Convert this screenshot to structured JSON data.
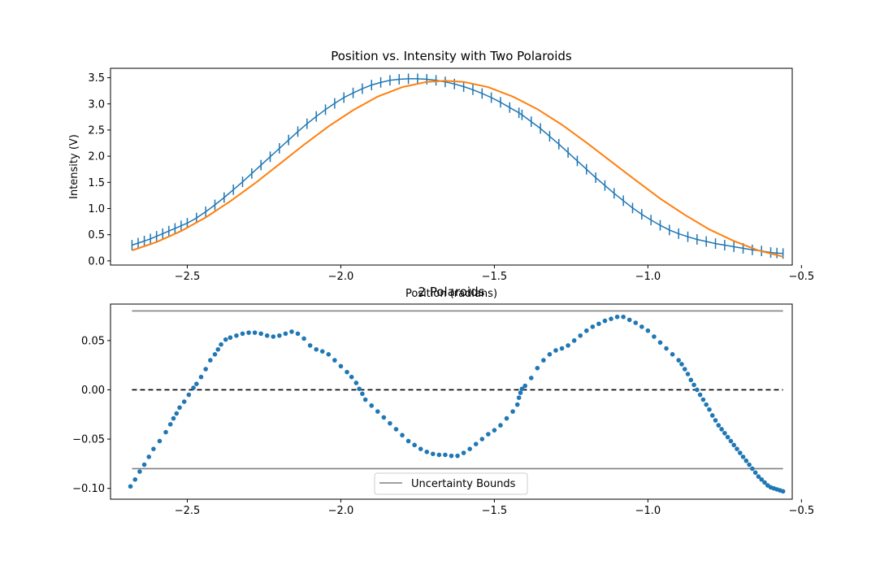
{
  "chart_data": [
    {
      "type": "line",
      "title": "Position vs. Intensity with Two Polaroids",
      "xlabel": "Position (radians)",
      "ylabel": "Intensity (V)",
      "xlim": [
        -2.75,
        -0.53
      ],
      "ylim": [
        -0.08,
        3.68
      ],
      "xticks": [
        -2.5,
        -2.0,
        -1.5,
        -1.0,
        -0.5
      ],
      "xtick_labels": [
        "−2.5",
        "−2.0",
        "−1.5",
        "−1.0",
        "−0.5"
      ],
      "yticks": [
        0.0,
        0.5,
        1.0,
        1.5,
        2.0,
        2.5,
        3.0,
        3.5
      ],
      "ytick_labels": [
        "0.0",
        "0.5",
        "1.0",
        "1.5",
        "2.0",
        "2.5",
        "3.0",
        "3.5"
      ],
      "grid": false,
      "series": [
        {
          "kind": "errorbar",
          "color": "#1f77b4",
          "x": [
            -2.68,
            -2.66,
            -2.64,
            -2.62,
            -2.6,
            -2.58,
            -2.56,
            -2.54,
            -2.52,
            -2.5,
            -2.47,
            -2.44,
            -2.41,
            -2.38,
            -2.35,
            -2.32,
            -2.29,
            -2.26,
            -2.23,
            -2.2,
            -2.17,
            -2.14,
            -2.11,
            -2.08,
            -2.05,
            -2.02,
            -1.99,
            -1.96,
            -1.93,
            -1.9,
            -1.87,
            -1.84,
            -1.81,
            -1.78,
            -1.75,
            -1.72,
            -1.69,
            -1.66,
            -1.63,
            -1.6,
            -1.57,
            -1.54,
            -1.51,
            -1.48,
            -1.45,
            -1.42,
            -1.41,
            -1.38,
            -1.35,
            -1.32,
            -1.29,
            -1.26,
            -1.23,
            -1.2,
            -1.17,
            -1.14,
            -1.11,
            -1.08,
            -1.05,
            -1.02,
            -0.99,
            -0.96,
            -0.93,
            -0.9,
            -0.87,
            -0.84,
            -0.81,
            -0.78,
            -0.75,
            -0.72,
            -0.69,
            -0.66,
            -0.63,
            -0.6,
            -0.58,
            -0.56
          ],
          "y": [
            0.3,
            0.34,
            0.38,
            0.42,
            0.47,
            0.52,
            0.57,
            0.62,
            0.67,
            0.72,
            0.82,
            0.94,
            1.07,
            1.21,
            1.36,
            1.51,
            1.67,
            1.83,
            1.99,
            2.15,
            2.31,
            2.47,
            2.62,
            2.76,
            2.89,
            3.01,
            3.12,
            3.21,
            3.29,
            3.36,
            3.41,
            3.45,
            3.47,
            3.48,
            3.48,
            3.47,
            3.45,
            3.42,
            3.38,
            3.33,
            3.27,
            3.2,
            3.12,
            3.03,
            2.93,
            2.83,
            2.79,
            2.66,
            2.53,
            2.38,
            2.23,
            2.07,
            1.91,
            1.75,
            1.59,
            1.44,
            1.29,
            1.15,
            1.01,
            0.89,
            0.78,
            0.68,
            0.59,
            0.52,
            0.46,
            0.41,
            0.37,
            0.33,
            0.3,
            0.27,
            0.24,
            0.21,
            0.19,
            0.16,
            0.15,
            0.14
          ],
          "yerr": 0.1
        },
        {
          "kind": "line",
          "color": "#ff7f0e",
          "x": [
            -2.68,
            -2.6,
            -2.52,
            -2.44,
            -2.36,
            -2.28,
            -2.2,
            -2.12,
            -2.04,
            -1.96,
            -1.88,
            -1.8,
            -1.72,
            -1.66,
            -1.6,
            -1.52,
            -1.44,
            -1.36,
            -1.28,
            -1.2,
            -1.12,
            -1.04,
            -0.96,
            -0.88,
            -0.8,
            -0.72,
            -0.64,
            -0.56
          ],
          "y": [
            0.2,
            0.36,
            0.57,
            0.83,
            1.14,
            1.48,
            1.85,
            2.22,
            2.57,
            2.88,
            3.14,
            3.32,
            3.42,
            3.44,
            3.42,
            3.32,
            3.14,
            2.9,
            2.6,
            2.26,
            1.9,
            1.54,
            1.19,
            0.88,
            0.6,
            0.38,
            0.2,
            0.08
          ]
        }
      ]
    },
    {
      "type": "scatter",
      "title": "2 Polaroids",
      "xlabel": "",
      "ylabel": "",
      "xlim": [
        -2.75,
        -0.53
      ],
      "ylim": [
        -0.111,
        0.087
      ],
      "xticks": [
        -2.5,
        -2.0,
        -1.5,
        -1.0,
        -0.5
      ],
      "xtick_labels": [
        "−2.5",
        "−2.0",
        "−1.5",
        "−1.0",
        "−0.5"
      ],
      "yticks": [
        0.05,
        0.0,
        -0.05,
        -0.1
      ],
      "ytick_labels": [
        "0.05",
        "0.00",
        "−0.05",
        "−0.10"
      ],
      "grid": false,
      "legend": {
        "placement": "lower center",
        "entries": [
          "Uncertainty Bounds"
        ]
      },
      "hlines": [
        {
          "y": 0.08,
          "color": "#808080",
          "style": "solid",
          "xmin": -2.68,
          "xmax": -0.56,
          "label": "Uncertainty Bounds"
        },
        {
          "y": -0.08,
          "color": "#808080",
          "style": "solid",
          "xmin": -2.68,
          "xmax": -0.56
        },
        {
          "y": 0.0,
          "color": "#000000",
          "style": "dashed",
          "xmin": -2.68,
          "xmax": -0.56
        }
      ],
      "series": [
        {
          "kind": "scatter",
          "color": "#1f77b4",
          "x": [
            -2.685,
            -2.67,
            -2.655,
            -2.64,
            -2.625,
            -2.61,
            -2.59,
            -2.57,
            -2.555,
            -2.545,
            -2.535,
            -2.525,
            -2.51,
            -2.495,
            -2.48,
            -2.47,
            -2.455,
            -2.44,
            -2.425,
            -2.41,
            -2.4,
            -2.39,
            -2.375,
            -2.36,
            -2.34,
            -2.32,
            -2.3,
            -2.28,
            -2.26,
            -2.24,
            -2.22,
            -2.2,
            -2.18,
            -2.16,
            -2.14,
            -2.12,
            -2.1,
            -2.08,
            -2.06,
            -2.04,
            -2.02,
            -2.0,
            -1.98,
            -1.965,
            -1.95,
            -1.94,
            -1.93,
            -1.92,
            -1.9,
            -1.88,
            -1.86,
            -1.84,
            -1.82,
            -1.8,
            -1.78,
            -1.76,
            -1.74,
            -1.72,
            -1.7,
            -1.68,
            -1.66,
            -1.64,
            -1.62,
            -1.6,
            -1.58,
            -1.56,
            -1.54,
            -1.52,
            -1.5,
            -1.48,
            -1.46,
            -1.44,
            -1.425,
            -1.42,
            -1.415,
            -1.41,
            -1.4,
            -1.38,
            -1.36,
            -1.34,
            -1.32,
            -1.3,
            -1.28,
            -1.26,
            -1.24,
            -1.22,
            -1.2,
            -1.18,
            -1.16,
            -1.14,
            -1.12,
            -1.1,
            -1.08,
            -1.06,
            -1.04,
            -1.02,
            -1.0,
            -0.98,
            -0.96,
            -0.94,
            -0.92,
            -0.9,
            -0.89,
            -0.88,
            -0.87,
            -0.86,
            -0.85,
            -0.84,
            -0.83,
            -0.82,
            -0.81,
            -0.8,
            -0.79,
            -0.78,
            -0.77,
            -0.76,
            -0.75,
            -0.74,
            -0.73,
            -0.72,
            -0.71,
            -0.7,
            -0.69,
            -0.68,
            -0.67,
            -0.66,
            -0.65,
            -0.64,
            -0.63,
            -0.62,
            -0.61,
            -0.6,
            -0.59,
            -0.58,
            -0.57,
            -0.56
          ],
          "y": [
            -0.098,
            -0.091,
            -0.083,
            -0.076,
            -0.068,
            -0.06,
            -0.052,
            -0.043,
            -0.035,
            -0.029,
            -0.024,
            -0.018,
            -0.012,
            -0.005,
            0.002,
            0.006,
            0.013,
            0.021,
            0.03,
            0.036,
            0.041,
            0.046,
            0.051,
            0.053,
            0.055,
            0.057,
            0.058,
            0.058,
            0.057,
            0.055,
            0.054,
            0.055,
            0.057,
            0.059,
            0.057,
            0.052,
            0.045,
            0.041,
            0.039,
            0.036,
            0.03,
            0.024,
            0.018,
            0.013,
            0.007,
            0.001,
            -0.004,
            -0.01,
            -0.016,
            -0.022,
            -0.028,
            -0.034,
            -0.04,
            -0.046,
            -0.052,
            -0.056,
            -0.06,
            -0.063,
            -0.065,
            -0.066,
            -0.066,
            -0.067,
            -0.067,
            -0.064,
            -0.06,
            -0.055,
            -0.05,
            -0.045,
            -0.041,
            -0.036,
            -0.029,
            -0.022,
            -0.015,
            -0.008,
            -0.003,
            0.001,
            0.004,
            0.012,
            0.022,
            0.03,
            0.036,
            0.04,
            0.042,
            0.045,
            0.05,
            0.055,
            0.06,
            0.064,
            0.067,
            0.07,
            0.072,
            0.074,
            0.074,
            0.071,
            0.068,
            0.064,
            0.06,
            0.054,
            0.048,
            0.042,
            0.036,
            0.03,
            0.026,
            0.021,
            0.016,
            0.01,
            0.005,
            0.0,
            -0.005,
            -0.01,
            -0.015,
            -0.02,
            -0.026,
            -0.031,
            -0.036,
            -0.04,
            -0.044,
            -0.048,
            -0.052,
            -0.056,
            -0.06,
            -0.064,
            -0.068,
            -0.072,
            -0.076,
            -0.08,
            -0.084,
            -0.088,
            -0.091,
            -0.094,
            -0.097,
            -0.099,
            -0.1,
            -0.101,
            -0.102,
            -0.103
          ]
        }
      ]
    }
  ]
}
